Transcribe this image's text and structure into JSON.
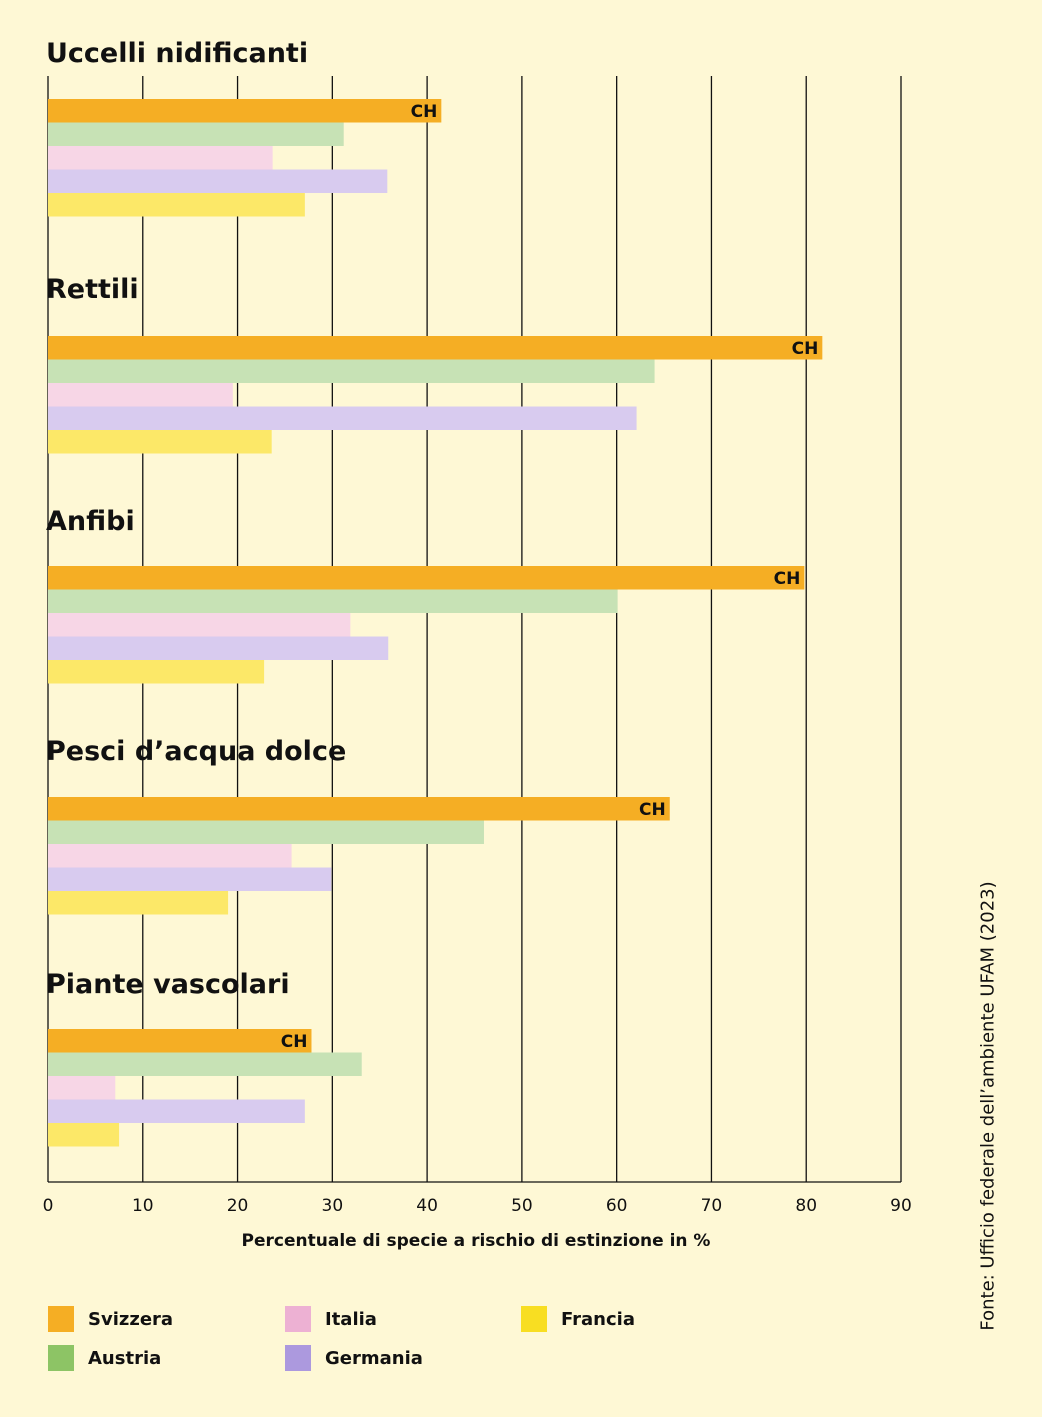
{
  "chart_data": {
    "type": "bar",
    "orientation": "horizontal",
    "xlabel": "Percentuale di specie a rischio di estinzione in %",
    "xlim": [
      0,
      90
    ],
    "xticks": [
      0,
      10,
      20,
      30,
      40,
      50,
      60,
      70,
      80,
      90
    ],
    "grid": "vertical",
    "series_names": [
      "Svizzera",
      "Austria",
      "Italia",
      "Germania",
      "Francia"
    ],
    "series_colors": [
      "#F5AE24",
      "#C7E2B5",
      "#F7D6E6",
      "#D8CBEF",
      "#FCE868"
    ],
    "highlight_label": "CH",
    "panels": [
      {
        "title": "Uccelli nidificanti",
        "values": [
          41.5,
          31.2,
          23.7,
          35.8,
          27.1
        ]
      },
      {
        "title": "Rettili",
        "values": [
          81.7,
          64.0,
          19.5,
          62.1,
          23.6
        ]
      },
      {
        "title": "Anfibi",
        "values": [
          79.8,
          60.1,
          31.9,
          35.9,
          22.8
        ]
      },
      {
        "title": "Pesci d’acqua dolce",
        "values": [
          65.6,
          46.0,
          25.7,
          29.9,
          19.0
        ]
      },
      {
        "title": "Piante vascolari",
        "values": [
          27.8,
          33.1,
          7.1,
          27.1,
          7.5
        ]
      }
    ]
  },
  "legend": [
    {
      "label": "Svizzera",
      "color": "#F5AE24"
    },
    {
      "label": "Italia",
      "color": "#EDB1D3"
    },
    {
      "label": "Francia",
      "color": "#F8DE22"
    },
    {
      "label": "Austria",
      "color": "#8DC465"
    },
    {
      "label": "Germania",
      "color": "#AC99DE"
    }
  ],
  "source": "Fonte: Ufficio federale dell’ambiente UFAM (2023)"
}
